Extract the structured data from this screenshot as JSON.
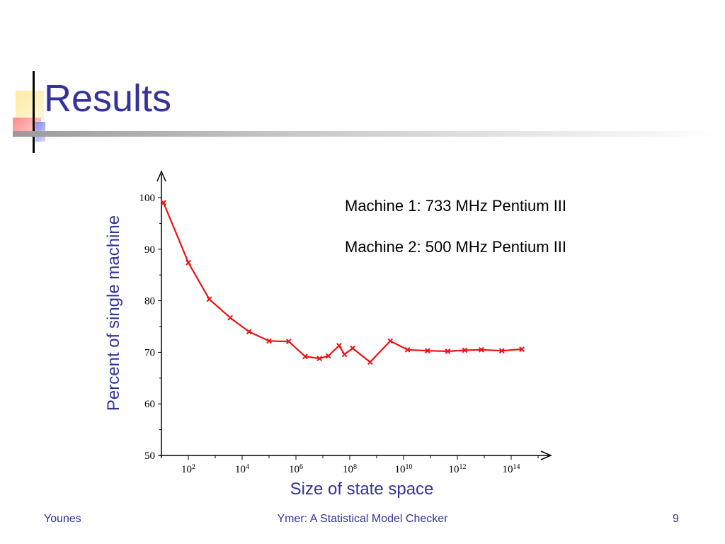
{
  "slide": {
    "title": "Results",
    "accent_color": "#333399"
  },
  "notes": [
    "Machine 1: 733 MHz Pentium III",
    "Machine 2: 500 MHz Pentium III"
  ],
  "footer": {
    "author": "Younes",
    "presentation": "Ymer: A Statistical Model Checker",
    "page_number": "9"
  },
  "chart_data": {
    "type": "line",
    "title": "",
    "xlabel": "Size of state space",
    "ylabel": "Percent of single machine",
    "x_scale": "log",
    "xlim": [
      10,
      1000000000000000.0
    ],
    "ylim": [
      50,
      100
    ],
    "x_ticks": [
      100,
      10000,
      1000000,
      100000000,
      10000000000,
      1000000000000,
      100000000000000
    ],
    "x_tick_labels": [
      {
        "base": "10",
        "exp": "2"
      },
      {
        "base": "10",
        "exp": "4"
      },
      {
        "base": "10",
        "exp": "6"
      },
      {
        "base": "10",
        "exp": "8"
      },
      {
        "base": "10",
        "exp": "10"
      },
      {
        "base": "10",
        "exp": "12"
      },
      {
        "base": "10",
        "exp": "14"
      }
    ],
    "y_ticks": [
      50,
      60,
      70,
      80,
      90,
      100
    ],
    "grid": false,
    "legend": "none",
    "series_color": "#ee1111",
    "marker": "x",
    "series": [
      {
        "x": [
          12,
          100,
          600,
          3600,
          18000,
          100000,
          540000,
          2200000,
          7500000,
          16000000,
          40000000,
          64000000,
          128000000,
          570000000,
          3200000000,
          14000000000,
          78000000000,
          440000000000,
          1900000000000,
          7800000000000,
          45000000000000,
          250000000000000
        ],
        "y": [
          99,
          87.4,
          80.3,
          76.7,
          74,
          72.2,
          72.1,
          69.2,
          68.8,
          69.3,
          71.3,
          69.6,
          70.8,
          68.1,
          72.2,
          70.5,
          70.3,
          70.2,
          70.4,
          70.5,
          70.3,
          70.6
        ]
      }
    ]
  }
}
